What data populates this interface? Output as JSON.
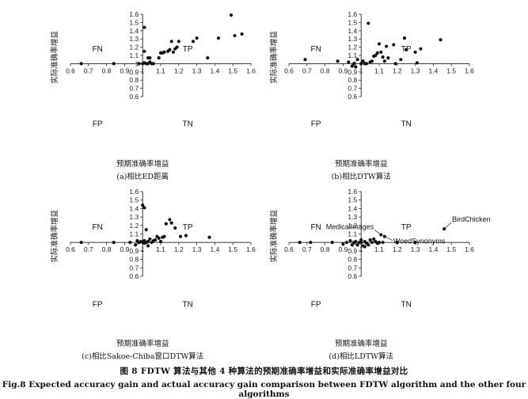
{
  "figure": {
    "caption_cn": "图 8    FDTW 算法与其他 4 种算法的预期准确率增益和实际准确率增益对比",
    "caption_en": "Fig.8    Expected accuracy gain and actual accuracy gain comparison between FDTW algorithm and the other four algorithms"
  },
  "chart_data": [
    {
      "type": "scatter",
      "subcaption": "(a)相比ED距离",
      "xlabel": "预期准确率增益",
      "ylabel": "实际准确率增益",
      "xlim": [
        0.6,
        1.6
      ],
      "ylim": [
        0.6,
        1.6
      ],
      "xticks": [
        "0.6",
        "0.7",
        "0.8",
        "0.9",
        "1",
        "1.1",
        "1.2",
        "1.3",
        "1.4",
        "1.5",
        "1.6"
      ],
      "yticks": [
        "0.6",
        "0.7",
        "0.8",
        "0.9",
        "1",
        "1.1",
        "1.2",
        "1.3",
        "1.4",
        "1.5",
        "1.6"
      ],
      "quadrants": {
        "tl": "FN",
        "tr": "TP",
        "bl": "FP",
        "br": "TN"
      },
      "annotations": [],
      "points": [
        [
          0.66,
          1.0
        ],
        [
          0.84,
          1.0
        ],
        [
          0.98,
          1.0
        ],
        [
          1.0,
          1.0
        ],
        [
          1.01,
          1.01
        ],
        [
          1.02,
          1.0
        ],
        [
          1.03,
          1.0
        ],
        [
          1.04,
          1.02
        ],
        [
          1.05,
          1.0
        ],
        [
          1.06,
          1.0
        ],
        [
          1.01,
          1.44
        ],
        [
          1.01,
          1.15
        ],
        [
          1.03,
          1.07
        ],
        [
          1.04,
          1.07
        ],
        [
          1.09,
          1.07
        ],
        [
          1.1,
          1.13
        ],
        [
          1.11,
          1.13
        ],
        [
          1.12,
          1.14
        ],
        [
          1.14,
          1.15
        ],
        [
          1.15,
          1.17
        ],
        [
          1.16,
          1.27
        ],
        [
          1.17,
          1.14
        ],
        [
          1.18,
          1.18
        ],
        [
          1.19,
          1.2
        ],
        [
          1.2,
          1.27
        ],
        [
          1.28,
          1.27
        ],
        [
          1.3,
          1.31
        ],
        [
          1.36,
          1.07
        ],
        [
          1.42,
          1.31
        ],
        [
          1.49,
          1.59
        ],
        [
          1.51,
          1.34
        ],
        [
          1.55,
          1.36
        ]
      ]
    },
    {
      "type": "scatter",
      "subcaption": "(b)相比DTW算法",
      "xlabel": "预期准确率增益",
      "ylabel": "实际准确率增益",
      "xlim": [
        0.6,
        1.6
      ],
      "ylim": [
        0.6,
        1.6
      ],
      "xticks": [
        "0.6",
        "0.7",
        "0.8",
        "0.9",
        "1",
        "1.1",
        "1.2",
        "1.3",
        "1.4",
        "1.5",
        "1.6"
      ],
      "yticks": [
        "0.6",
        "0.7",
        "0.8",
        "0.9",
        "1",
        "1.1",
        "1.2",
        "1.3",
        "1.4",
        "1.5",
        "1.6"
      ],
      "quadrants": {
        "tl": "FN",
        "tr": "TP",
        "bl": "FP",
        "br": "TN"
      },
      "annotations": [],
      "points": [
        [
          0.69,
          1.05
        ],
        [
          0.87,
          1.03
        ],
        [
          0.93,
          1.02
        ],
        [
          0.95,
          0.97
        ],
        [
          0.96,
          1.0
        ],
        [
          0.97,
          0.96
        ],
        [
          0.98,
          1.05
        ],
        [
          1.0,
          1.0
        ],
        [
          1.01,
          1.03
        ],
        [
          1.02,
          1.0
        ],
        [
          1.03,
          1.0
        ],
        [
          1.04,
          1.49
        ],
        [
          1.05,
          1.02
        ],
        [
          1.06,
          1.03
        ],
        [
          1.07,
          1.09
        ],
        [
          1.08,
          1.1
        ],
        [
          1.09,
          1.13
        ],
        [
          1.1,
          1.24
        ],
        [
          1.11,
          1.14
        ],
        [
          1.12,
          1.08
        ],
        [
          1.13,
          1.03
        ],
        [
          1.14,
          1.21
        ],
        [
          1.15,
          1.07
        ],
        [
          1.18,
          1.23
        ],
        [
          1.19,
          1.0
        ],
        [
          1.22,
          1.05
        ],
        [
          1.24,
          1.31
        ],
        [
          1.25,
          1.17
        ],
        [
          1.3,
          1.14
        ],
        [
          1.31,
          1.01
        ],
        [
          1.33,
          1.18
        ],
        [
          1.44,
          1.29
        ]
      ]
    },
    {
      "type": "scatter",
      "subcaption": "(c)相比Sakoe-Chiba窗口DTW算法",
      "xlabel": "预期准确率增益",
      "ylabel": "实际准确率增益",
      "xlim": [
        0.6,
        1.6
      ],
      "ylim": [
        0.6,
        1.6
      ],
      "xticks": [
        "0.6",
        "0.7",
        "0.8",
        "0.9",
        "1",
        "1.1",
        "1.2",
        "1.3",
        "1.4",
        "1.5",
        "1.6"
      ],
      "yticks": [
        "0.6",
        "0.7",
        "0.8",
        "0.9",
        "1",
        "1.1",
        "1.2",
        "1.3",
        "1.4",
        "1.5",
        "1.6"
      ],
      "quadrants": {
        "tl": "FN",
        "tr": "TP",
        "bl": "FP",
        "br": "TN"
      },
      "annotations": [],
      "points": [
        [
          0.66,
          1.0
        ],
        [
          0.84,
          1.0
        ],
        [
          0.93,
          1.0
        ],
        [
          0.96,
          0.97
        ],
        [
          0.97,
          1.02
        ],
        [
          0.98,
          1.0
        ],
        [
          0.99,
          1.01
        ],
        [
          1.0,
          1.0
        ],
        [
          1.01,
          1.02
        ],
        [
          1.02,
          1.0
        ],
        [
          1.03,
          1.01
        ],
        [
          1.04,
          1.04
        ],
        [
          1.05,
          1.0
        ],
        [
          1.06,
          1.02
        ],
        [
          1.07,
          1.03
        ],
        [
          1.08,
          1.07
        ],
        [
          1.09,
          1.05
        ],
        [
          1.1,
          1.01
        ],
        [
          1.11,
          1.06
        ],
        [
          1.12,
          1.07
        ],
        [
          1.0,
          1.44
        ],
        [
          1.01,
          1.41
        ],
        [
          1.02,
          1.15
        ],
        [
          1.13,
          1.22
        ],
        [
          1.15,
          1.27
        ],
        [
          1.16,
          1.23
        ],
        [
          1.18,
          1.17
        ],
        [
          1.21,
          1.07
        ],
        [
          1.24,
          1.08
        ],
        [
          1.37,
          1.06
        ],
        [
          1.03,
          0.96
        ],
        [
          1.01,
          0.99
        ]
      ]
    },
    {
      "type": "scatter",
      "subcaption": "(d)相比LDTW算法",
      "xlabel": "预期准确率增益",
      "ylabel": "实际准确率增益",
      "xlim": [
        0.6,
        1.6
      ],
      "ylim": [
        0.6,
        1.6
      ],
      "xticks": [
        "0.6",
        "0.7",
        "0.8",
        "0.9",
        "1",
        "1.1",
        "1.2",
        "1.3",
        "1.4",
        "1.5",
        "1.6"
      ],
      "yticks": [
        "0.6",
        "0.7",
        "0.8",
        "0.9",
        "1",
        "1.1",
        "1.2",
        "1.3",
        "1.4",
        "1.5",
        "1.6"
      ],
      "quadrants": {
        "tl": "FN",
        "tr": "TP",
        "bl": "FP",
        "br": "TN"
      },
      "annotations": [
        {
          "text": "BirdChicken",
          "x": 1.46,
          "y": 1.16
        },
        {
          "text": "MedicalImages",
          "x": 1.11,
          "y": 1.09
        },
        {
          "text": "WoedSynonyms",
          "x": 1.13,
          "y": 1.07
        }
      ],
      "points": [
        [
          0.66,
          1.0
        ],
        [
          0.72,
          1.0
        ],
        [
          0.84,
          1.0
        ],
        [
          0.9,
          0.98
        ],
        [
          0.92,
          1.0
        ],
        [
          0.94,
          1.02
        ],
        [
          0.95,
          0.97
        ],
        [
          0.96,
          1.0
        ],
        [
          0.97,
          1.01
        ],
        [
          0.98,
          0.97
        ],
        [
          0.99,
          1.0
        ],
        [
          1.0,
          1.0
        ],
        [
          1.01,
          0.96
        ],
        [
          1.02,
          1.01
        ],
        [
          1.03,
          0.99
        ],
        [
          1.04,
          0.97
        ],
        [
          1.05,
          1.03
        ],
        [
          1.06,
          1.0
        ],
        [
          1.07,
          1.04
        ],
        [
          1.08,
          1.01
        ],
        [
          1.11,
          1.09
        ],
        [
          1.13,
          1.07
        ],
        [
          1.46,
          1.16
        ],
        [
          1.2,
          1.0
        ],
        [
          1.3,
          1.0
        ],
        [
          1.12,
          1.0
        ],
        [
          1.0,
          1.03
        ],
        [
          1.02,
          0.95
        ],
        [
          1.1,
          1.0
        ],
        [
          1.09,
          0.99
        ]
      ]
    }
  ]
}
